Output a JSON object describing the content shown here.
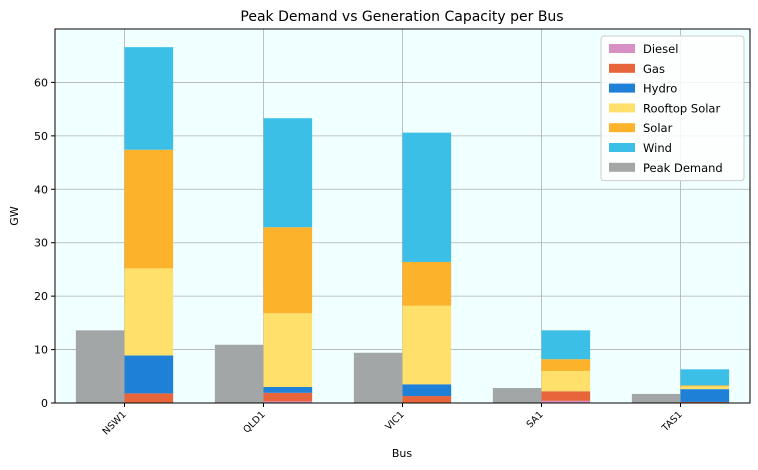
{
  "chart_data": {
    "type": "bar",
    "title": "Peak Demand vs Generation Capacity per Bus",
    "xlabel": "Bus",
    "ylabel": "GW",
    "categories": [
      "NSW1",
      "QLD1",
      "VIC1",
      "SA1",
      "TAS1"
    ],
    "ylim": [
      0,
      70
    ],
    "yticks": [
      0,
      10,
      20,
      30,
      40,
      50,
      60
    ],
    "grid": true,
    "legend_position": "top-right",
    "stacked_series": [
      {
        "name": "Diesel",
        "color": "#d88fc4",
        "values": [
          0.1,
          0.3,
          0.1,
          0.4,
          0.0
        ]
      },
      {
        "name": "Gas",
        "color": "#e8643a",
        "values": [
          1.7,
          1.6,
          1.2,
          1.8,
          0.2
        ]
      },
      {
        "name": "Hydro",
        "color": "#1f80d8",
        "values": [
          7.1,
          1.1,
          2.2,
          0.0,
          2.4
        ]
      },
      {
        "name": "Rooftop Solar",
        "color": "#ffe06a",
        "values": [
          16.3,
          13.8,
          14.7,
          3.8,
          0.5
        ]
      },
      {
        "name": "Solar",
        "color": "#fdb22b",
        "values": [
          22.2,
          16.1,
          8.2,
          2.2,
          0.2
        ]
      },
      {
        "name": "Wind",
        "color": "#3bbfe6",
        "values": [
          19.2,
          20.4,
          24.2,
          5.4,
          3.0
        ]
      }
    ],
    "peak_demand": {
      "name": "Peak Demand",
      "color": "#a2a6a6",
      "values": [
        13.6,
        10.9,
        9.4,
        2.8,
        1.7
      ]
    }
  }
}
